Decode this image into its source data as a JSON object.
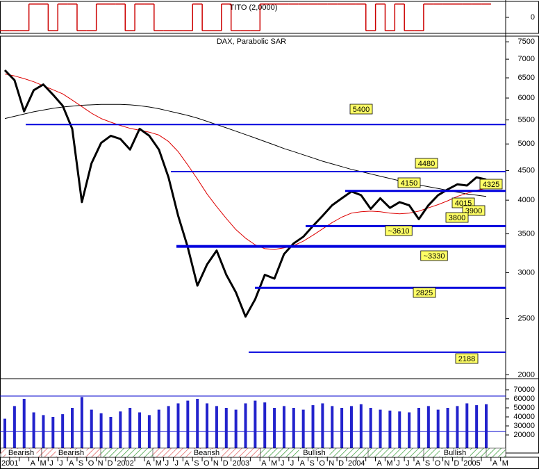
{
  "chart_data": [
    {
      "type": "step",
      "title": "TITO (2,0000)",
      "color": "#cc0000",
      "values": [
        -1,
        -1,
        -1,
        1,
        1,
        -1,
        1,
        1,
        -1,
        -1,
        1,
        1,
        1,
        -1,
        1,
        1,
        -1,
        -1,
        -1,
        -1,
        1,
        -1,
        -1,
        1,
        -1,
        -1,
        -1,
        1,
        1,
        1,
        1,
        1,
        1,
        1,
        1,
        1,
        1,
        1,
        -1,
        1,
        -1,
        1,
        -1,
        -1,
        1,
        1,
        1,
        1,
        1,
        1,
        1,
        null,
        null
      ],
      "ylim": [
        -1.2,
        1.2
      ],
      "yticks": [
        0
      ]
    },
    {
      "type": "line",
      "title": "DAX, Parabolic SAR",
      "log": true,
      "ylim": [
        1970,
        7670
      ],
      "yticks": [
        2000,
        2500,
        3000,
        3500,
        4000,
        4500,
        5000,
        5500,
        6000,
        6500,
        7000,
        7500
      ],
      "series": [
        {
          "color": "#000000",
          "values": [
            5530,
            5580,
            5630,
            5680,
            5720,
            5760,
            5790,
            5810,
            5830,
            5840,
            5850,
            5850,
            5850,
            5840,
            5820,
            5790,
            5750,
            5700,
            5650,
            5600,
            5540,
            5470,
            5400,
            5330,
            5260,
            5190,
            5120,
            5050,
            4980,
            4910,
            4850,
            4790,
            4730,
            4670,
            4620,
            4570,
            4520,
            4480,
            4440,
            4400,
            4360,
            4320,
            4280,
            4250,
            4220,
            4190,
            4160,
            4130,
            4100,
            4080,
            4060,
            null,
            null
          ]
        },
        {
          "color": "#dd0000",
          "values": [
            6600,
            6550,
            6480,
            6400,
            6300,
            6200,
            6100,
            5950,
            5800,
            5650,
            5530,
            5450,
            5380,
            5320,
            5280,
            5240,
            5180,
            5050,
            4850,
            4600,
            4350,
            4100,
            3900,
            3720,
            3560,
            3440,
            3350,
            3300,
            3290,
            3310,
            3340,
            3400,
            3480,
            3570,
            3660,
            3740,
            3800,
            3820,
            3830,
            3820,
            3800,
            3790,
            3800,
            3830,
            3880,
            3930,
            3990,
            4060,
            4110,
            4160,
            4190,
            null,
            null
          ]
        },
        {
          "color": "#000000",
          "values": [
            6700,
            6440,
            5690,
            6190,
            6330,
            6080,
            5820,
            5310,
            3970,
            4630,
            5020,
            5165,
            5100,
            4890,
            5310,
            5165,
            4890,
            4380,
            3760,
            3320,
            2850,
            3100,
            3275,
            2975,
            2775,
            2520,
            2700,
            2975,
            2930,
            3230,
            3370,
            3460,
            3610,
            3760,
            3920,
            4030,
            4140,
            4080,
            3865,
            4030,
            3880,
            3970,
            3920,
            3710,
            3920,
            4080,
            4175,
            4260,
            4240,
            4380,
            4340,
            null,
            null
          ]
        }
      ],
      "level_color": "#0000dd",
      "levels": [
        5400,
        4480,
        4150,
        4325,
        4015,
        3900,
        3800,
        {
          "value": 3610,
          "label": "~3610"
        },
        {
          "value": 3330,
          "label": "~3330"
        },
        2825,
        2188
      ]
    },
    {
      "type": "bar",
      "color": "#2222cc",
      "categories": [
        "2001",
        null,
        null,
        "A",
        "M",
        "J",
        "J",
        "A",
        "S",
        "O",
        "N",
        "D",
        "2002",
        null,
        null,
        "A",
        "M",
        "J",
        "J",
        "A",
        "S",
        "O",
        "N",
        "D",
        "2003",
        null,
        null,
        "A",
        "M",
        "J",
        "J",
        "A",
        "S",
        "O",
        "N",
        "D",
        "2004",
        null,
        null,
        "A",
        "M",
        "J",
        "J",
        "A",
        "S",
        "O",
        "N",
        "D",
        "2005",
        null,
        null,
        "A",
        "M"
      ],
      "values": [
        38000,
        52000,
        60000,
        45000,
        42000,
        40000,
        43000,
        50000,
        62000,
        48000,
        44000,
        40000,
        46000,
        50000,
        45000,
        42000,
        48000,
        52000,
        55000,
        58000,
        60000,
        55000,
        52000,
        50000,
        48000,
        55000,
        58000,
        56000,
        50000,
        52000,
        50000,
        48000,
        53000,
        55000,
        52000,
        50000,
        52000,
        54000,
        50000,
        48000,
        47000,
        46000,
        45000,
        50000,
        52000,
        48000,
        50000,
        52000,
        55000,
        53000,
        54000,
        null,
        null
      ],
      "ylim": [
        0,
        82300
      ],
      "yticks": [
        20000,
        30000,
        40000,
        50000,
        60000,
        70000
      ],
      "regimes": [
        "Bearish",
        "Bearish",
        "Bearish",
        "Bullish",
        "Bullish"
      ]
    }
  ]
}
